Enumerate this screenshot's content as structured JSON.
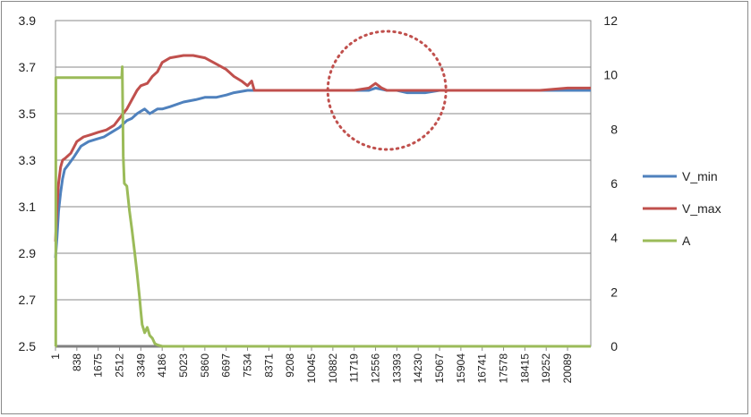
{
  "chart_data": {
    "type": "line",
    "x_ticks": [
      "1",
      "838",
      "1675",
      "2512",
      "3349",
      "4186",
      "5023",
      "5860",
      "6697",
      "7534",
      "8371",
      "9208",
      "10045",
      "10882",
      "11719",
      "12556",
      "13393",
      "14230",
      "15067",
      "15904",
      "16741",
      "17578",
      "18415",
      "19252",
      "20089"
    ],
    "x_range": [
      1,
      21000
    ],
    "y_left_ticks": [
      "2.5",
      "2.7",
      "2.9",
      "3.1",
      "3.3",
      "3.5",
      "3.7",
      "3.9"
    ],
    "y_left_range": [
      2.5,
      3.9
    ],
    "y_right_ticks": [
      "0",
      "2",
      "4",
      "6",
      "8",
      "10",
      "12"
    ],
    "y_right_range": [
      0,
      12
    ],
    "grid": true,
    "legend_position": "right",
    "highlight_circle": {
      "x": 13000,
      "y": 3.6,
      "style": "dotted",
      "color": "#c0504d"
    },
    "series": [
      {
        "name": "V_min",
        "color": "#4f81bd",
        "axis": "left",
        "points": [
          [
            1,
            2.88
          ],
          [
            60,
            2.97
          ],
          [
            120,
            3.08
          ],
          [
            200,
            3.16
          ],
          [
            280,
            3.22
          ],
          [
            360,
            3.26
          ],
          [
            500,
            3.28
          ],
          [
            700,
            3.31
          ],
          [
            1000,
            3.36
          ],
          [
            1300,
            3.38
          ],
          [
            1600,
            3.39
          ],
          [
            1900,
            3.4
          ],
          [
            2200,
            3.42
          ],
          [
            2500,
            3.44
          ],
          [
            2800,
            3.47
          ],
          [
            3000,
            3.48
          ],
          [
            3200,
            3.5
          ],
          [
            3349,
            3.51
          ],
          [
            3500,
            3.52
          ],
          [
            3700,
            3.5
          ],
          [
            4000,
            3.52
          ],
          [
            4186,
            3.52
          ],
          [
            4500,
            3.53
          ],
          [
            5023,
            3.55
          ],
          [
            5500,
            3.56
          ],
          [
            5860,
            3.57
          ],
          [
            6300,
            3.57
          ],
          [
            6697,
            3.58
          ],
          [
            7000,
            3.59
          ],
          [
            7534,
            3.6
          ],
          [
            8000,
            3.6
          ],
          [
            8371,
            3.6
          ],
          [
            9208,
            3.6
          ],
          [
            10045,
            3.6
          ],
          [
            10882,
            3.6
          ],
          [
            11719,
            3.6
          ],
          [
            12300,
            3.6
          ],
          [
            12556,
            3.61
          ],
          [
            13000,
            3.6
          ],
          [
            13393,
            3.6
          ],
          [
            13800,
            3.59
          ],
          [
            14230,
            3.59
          ],
          [
            14500,
            3.59
          ],
          [
            15067,
            3.6
          ],
          [
            16000,
            3.6
          ],
          [
            17000,
            3.6
          ],
          [
            18000,
            3.6
          ],
          [
            19000,
            3.6
          ],
          [
            20089,
            3.6
          ],
          [
            21000,
            3.6
          ]
        ]
      },
      {
        "name": "V_max",
        "color": "#c0504d",
        "axis": "left",
        "points": [
          [
            1,
            2.95
          ],
          [
            60,
            3.1
          ],
          [
            120,
            3.2
          ],
          [
            200,
            3.27
          ],
          [
            280,
            3.3
          ],
          [
            400,
            3.31
          ],
          [
            600,
            3.33
          ],
          [
            838,
            3.38
          ],
          [
            1100,
            3.4
          ],
          [
            1400,
            3.41
          ],
          [
            1675,
            3.42
          ],
          [
            2000,
            3.43
          ],
          [
            2300,
            3.45
          ],
          [
            2512,
            3.48
          ],
          [
            2800,
            3.52
          ],
          [
            3000,
            3.56
          ],
          [
            3200,
            3.6
          ],
          [
            3349,
            3.62
          ],
          [
            3600,
            3.63
          ],
          [
            3800,
            3.66
          ],
          [
            4000,
            3.68
          ],
          [
            4186,
            3.72
          ],
          [
            4500,
            3.74
          ],
          [
            5023,
            3.75
          ],
          [
            5400,
            3.75
          ],
          [
            5860,
            3.74
          ],
          [
            6200,
            3.72
          ],
          [
            6697,
            3.69
          ],
          [
            7000,
            3.66
          ],
          [
            7300,
            3.64
          ],
          [
            7534,
            3.62
          ],
          [
            7700,
            3.64
          ],
          [
            7800,
            3.6
          ],
          [
            8000,
            3.6
          ],
          [
            8371,
            3.6
          ],
          [
            9208,
            3.6
          ],
          [
            10045,
            3.6
          ],
          [
            10882,
            3.6
          ],
          [
            11719,
            3.6
          ],
          [
            12300,
            3.61
          ],
          [
            12556,
            3.63
          ],
          [
            12800,
            3.61
          ],
          [
            13000,
            3.6
          ],
          [
            13393,
            3.6
          ],
          [
            14230,
            3.6
          ],
          [
            15067,
            3.6
          ],
          [
            16000,
            3.6
          ],
          [
            17000,
            3.6
          ],
          [
            18000,
            3.6
          ],
          [
            19000,
            3.6
          ],
          [
            20089,
            3.61
          ],
          [
            21000,
            3.61
          ]
        ]
      },
      {
        "name": "A",
        "color": "#9bbb59",
        "axis": "right",
        "points": [
          [
            1,
            0
          ],
          [
            10,
            0
          ],
          [
            15,
            9.9
          ],
          [
            800,
            9.9
          ],
          [
            1675,
            9.9
          ],
          [
            2500,
            9.9
          ],
          [
            2600,
            9.9
          ],
          [
            2620,
            10.3
          ],
          [
            2660,
            7.0
          ],
          [
            2700,
            6.0
          ],
          [
            2800,
            5.9
          ],
          [
            2900,
            5.0
          ],
          [
            3000,
            4.3
          ],
          [
            3100,
            3.5
          ],
          [
            3200,
            2.7
          ],
          [
            3300,
            1.8
          ],
          [
            3349,
            1.3
          ],
          [
            3400,
            0.8
          ],
          [
            3500,
            0.5
          ],
          [
            3600,
            0.7
          ],
          [
            3700,
            0.4
          ],
          [
            3800,
            0.3
          ],
          [
            3900,
            0.1
          ],
          [
            4000,
            0.05
          ],
          [
            4186,
            0
          ],
          [
            5023,
            0
          ],
          [
            6000,
            0
          ],
          [
            8000,
            0
          ],
          [
            10000,
            0
          ],
          [
            12000,
            0
          ],
          [
            14000,
            0
          ],
          [
            16000,
            0
          ],
          [
            18000,
            0
          ],
          [
            20000,
            0
          ],
          [
            21000,
            0
          ]
        ]
      }
    ]
  }
}
